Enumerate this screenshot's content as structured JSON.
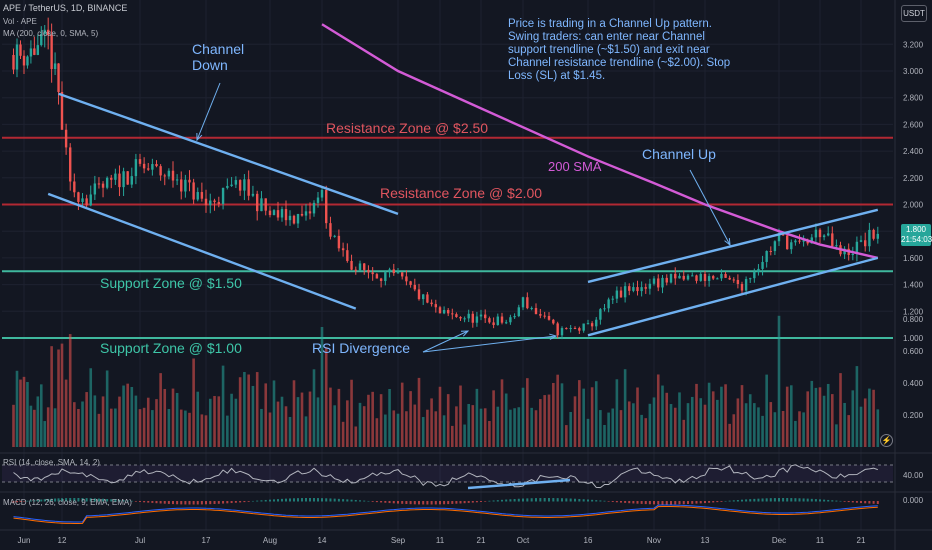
{
  "header": {
    "symbol_line": "APE / TetherUS, 1D, BINANCE",
    "vol_line": "Vol · APE",
    "ma_line": "MA (200, close, 0, SMA, 5)",
    "currency_badge": "USDT"
  },
  "annotations": {
    "note": "Price is trading in a Channel Up pattern. Swing traders: can enter near Channel support trendline (~$1.50) and exit near Channel resistance trendline (~$2.00). Stop Loss (SL) at $1.45.",
    "channel_down": "Channel\nDown",
    "channel_up": "Channel Up",
    "sma": "200 SMA",
    "res250": "Resistance Zone @ $2.50",
    "res200": "Resistance Zone @ $2.00",
    "sup150": "Support Zone @ $1.50",
    "sup100": "Support Zone @ $1.00",
    "rsi_div": "RSI Divergence"
  },
  "price_tag": {
    "value": "1.800",
    "countdown": "21:54:03"
  },
  "rsi_panel": {
    "label": "RSI (14, close, SMA, 14, 2)",
    "tick": "40.00"
  },
  "macd_panel": {
    "label": "MACD (12, 26, close, 9, EMA, EMA)",
    "tick": "0.000"
  },
  "colors": {
    "background": "#131722",
    "bull": "#26a69a",
    "bear": "#ef5350",
    "resistance": "#b22833",
    "support": "#3fb89e",
    "trendline": "#6fb0f0",
    "sma": "#d35bd6",
    "text_blue": "#7fb7ff",
    "text_red": "#e0555f",
    "text_green": "#3ec6a8"
  },
  "chart_data": [
    {
      "type": "candlestick",
      "title": "APE / TetherUS, 1D, BINANCE",
      "x_ticks": [
        "Jun",
        "12",
        "Jul",
        "17",
        "Aug",
        "14",
        "Sep",
        "11",
        "21",
        "Oct",
        "16",
        "Nov",
        "13",
        "Dec",
        "11",
        "21"
      ],
      "y_ticks": [
        3.2,
        3.0,
        2.8,
        2.6,
        2.4,
        2.2,
        2.0,
        1.8,
        1.6,
        1.4,
        1.2,
        1.0
      ],
      "ylim": [
        1.0,
        3.3
      ],
      "grid": true,
      "last_price": 1.8,
      "levels": [
        {
          "name": "Resistance Zone @ $2.50",
          "value": 2.5
        },
        {
          "name": "Resistance Zone @ $2.00",
          "value": 2.0
        },
        {
          "name": "Support Zone @ $1.50",
          "value": 1.5
        },
        {
          "name": "Support Zone @ $1.00",
          "value": 1.0
        }
      ],
      "keypoints": [
        {
          "x": "Jun",
          "y": 3.12
        },
        {
          "x": "Jun 8",
          "y": 3.22
        },
        {
          "x": "Jun 11",
          "y": 2.82
        },
        {
          "x": "Jun 14",
          "y": 2.12
        },
        {
          "x": "Jun 18",
          "y": 2.05
        },
        {
          "x": "Jul",
          "y": 2.28
        },
        {
          "x": "Jul 10",
          "y": 2.2
        },
        {
          "x": "Jul 17",
          "y": 2.0
        },
        {
          "x": "Jul 25",
          "y": 2.15
        },
        {
          "x": "Aug",
          "y": 1.92
        },
        {
          "x": "Aug 10",
          "y": 1.9
        },
        {
          "x": "Aug 14",
          "y": 2.08
        },
        {
          "x": "Aug 16",
          "y": 1.75
        },
        {
          "x": "Aug 22",
          "y": 1.52
        },
        {
          "x": "Sep",
          "y": 1.45
        },
        {
          "x": "Sep 11",
          "y": 1.18
        },
        {
          "x": "Sep 21",
          "y": 1.14
        },
        {
          "x": "Sep 28",
          "y": 1.12
        },
        {
          "x": "Oct",
          "y": 1.28
        },
        {
          "x": "Oct 9",
          "y": 1.05
        },
        {
          "x": "Oct 16",
          "y": 1.08
        },
        {
          "x": "Oct 23",
          "y": 1.32
        },
        {
          "x": "Nov",
          "y": 1.42
        },
        {
          "x": "Nov 13",
          "y": 1.46
        },
        {
          "x": "Nov 22",
          "y": 1.4
        },
        {
          "x": "Dec",
          "y": 1.75
        },
        {
          "x": "Dec 6",
          "y": 1.68
        },
        {
          "x": "Dec 11",
          "y": 1.8
        },
        {
          "x": "Dec 16",
          "y": 1.62
        },
        {
          "x": "Dec 21",
          "y": 1.7
        },
        {
          "x": "Dec 25",
          "y": 1.8
        }
      ],
      "sma200": [
        {
          "x": "Aug 14",
          "y": 3.35
        },
        {
          "x": "Sep",
          "y": 3.0
        },
        {
          "x": "Sep 21",
          "y": 2.72
        },
        {
          "x": "Oct 16",
          "y": 2.36
        },
        {
          "x": "Nov",
          "y": 2.16
        },
        {
          "x": "Nov 13",
          "y": 2.0
        },
        {
          "x": "Dec",
          "y": 1.8
        },
        {
          "x": "Dec 11",
          "y": 1.7
        },
        {
          "x": "Dec 25",
          "y": 1.6
        }
      ],
      "trendlines": [
        {
          "name": "Channel Down top",
          "from": {
            "x": "Jun 11",
            "y": 2.83
          },
          "to": {
            "x": "Sep",
            "y": 1.93
          }
        },
        {
          "name": "Channel Down bottom",
          "from": {
            "x": "Jun 8",
            "y": 2.08
          },
          "to": {
            "x": "Aug 22",
            "y": 1.22
          }
        },
        {
          "name": "Channel Up top",
          "from": {
            "x": "Oct 16",
            "y": 1.42
          },
          "to": {
            "x": "Dec 25",
            "y": 1.96
          }
        },
        {
          "name": "Channel Up bottom",
          "from": {
            "x": "Oct 16",
            "y": 1.02
          },
          "to": {
            "x": "Dec 25",
            "y": 1.6
          }
        }
      ]
    },
    {
      "type": "bar",
      "title": "Vol · APE",
      "y_ticks": [
        0.8,
        0.6,
        0.4,
        0.2
      ],
      "ylim": [
        0,
        0.85
      ]
    },
    {
      "type": "line",
      "title": "RSI (14, close, SMA, 14, 2)",
      "y_ticks": [
        40.0
      ]
    },
    {
      "type": "line",
      "title": "MACD (12, 26, close, 9, EMA, EMA)",
      "y_ticks": [
        0.0
      ]
    }
  ]
}
